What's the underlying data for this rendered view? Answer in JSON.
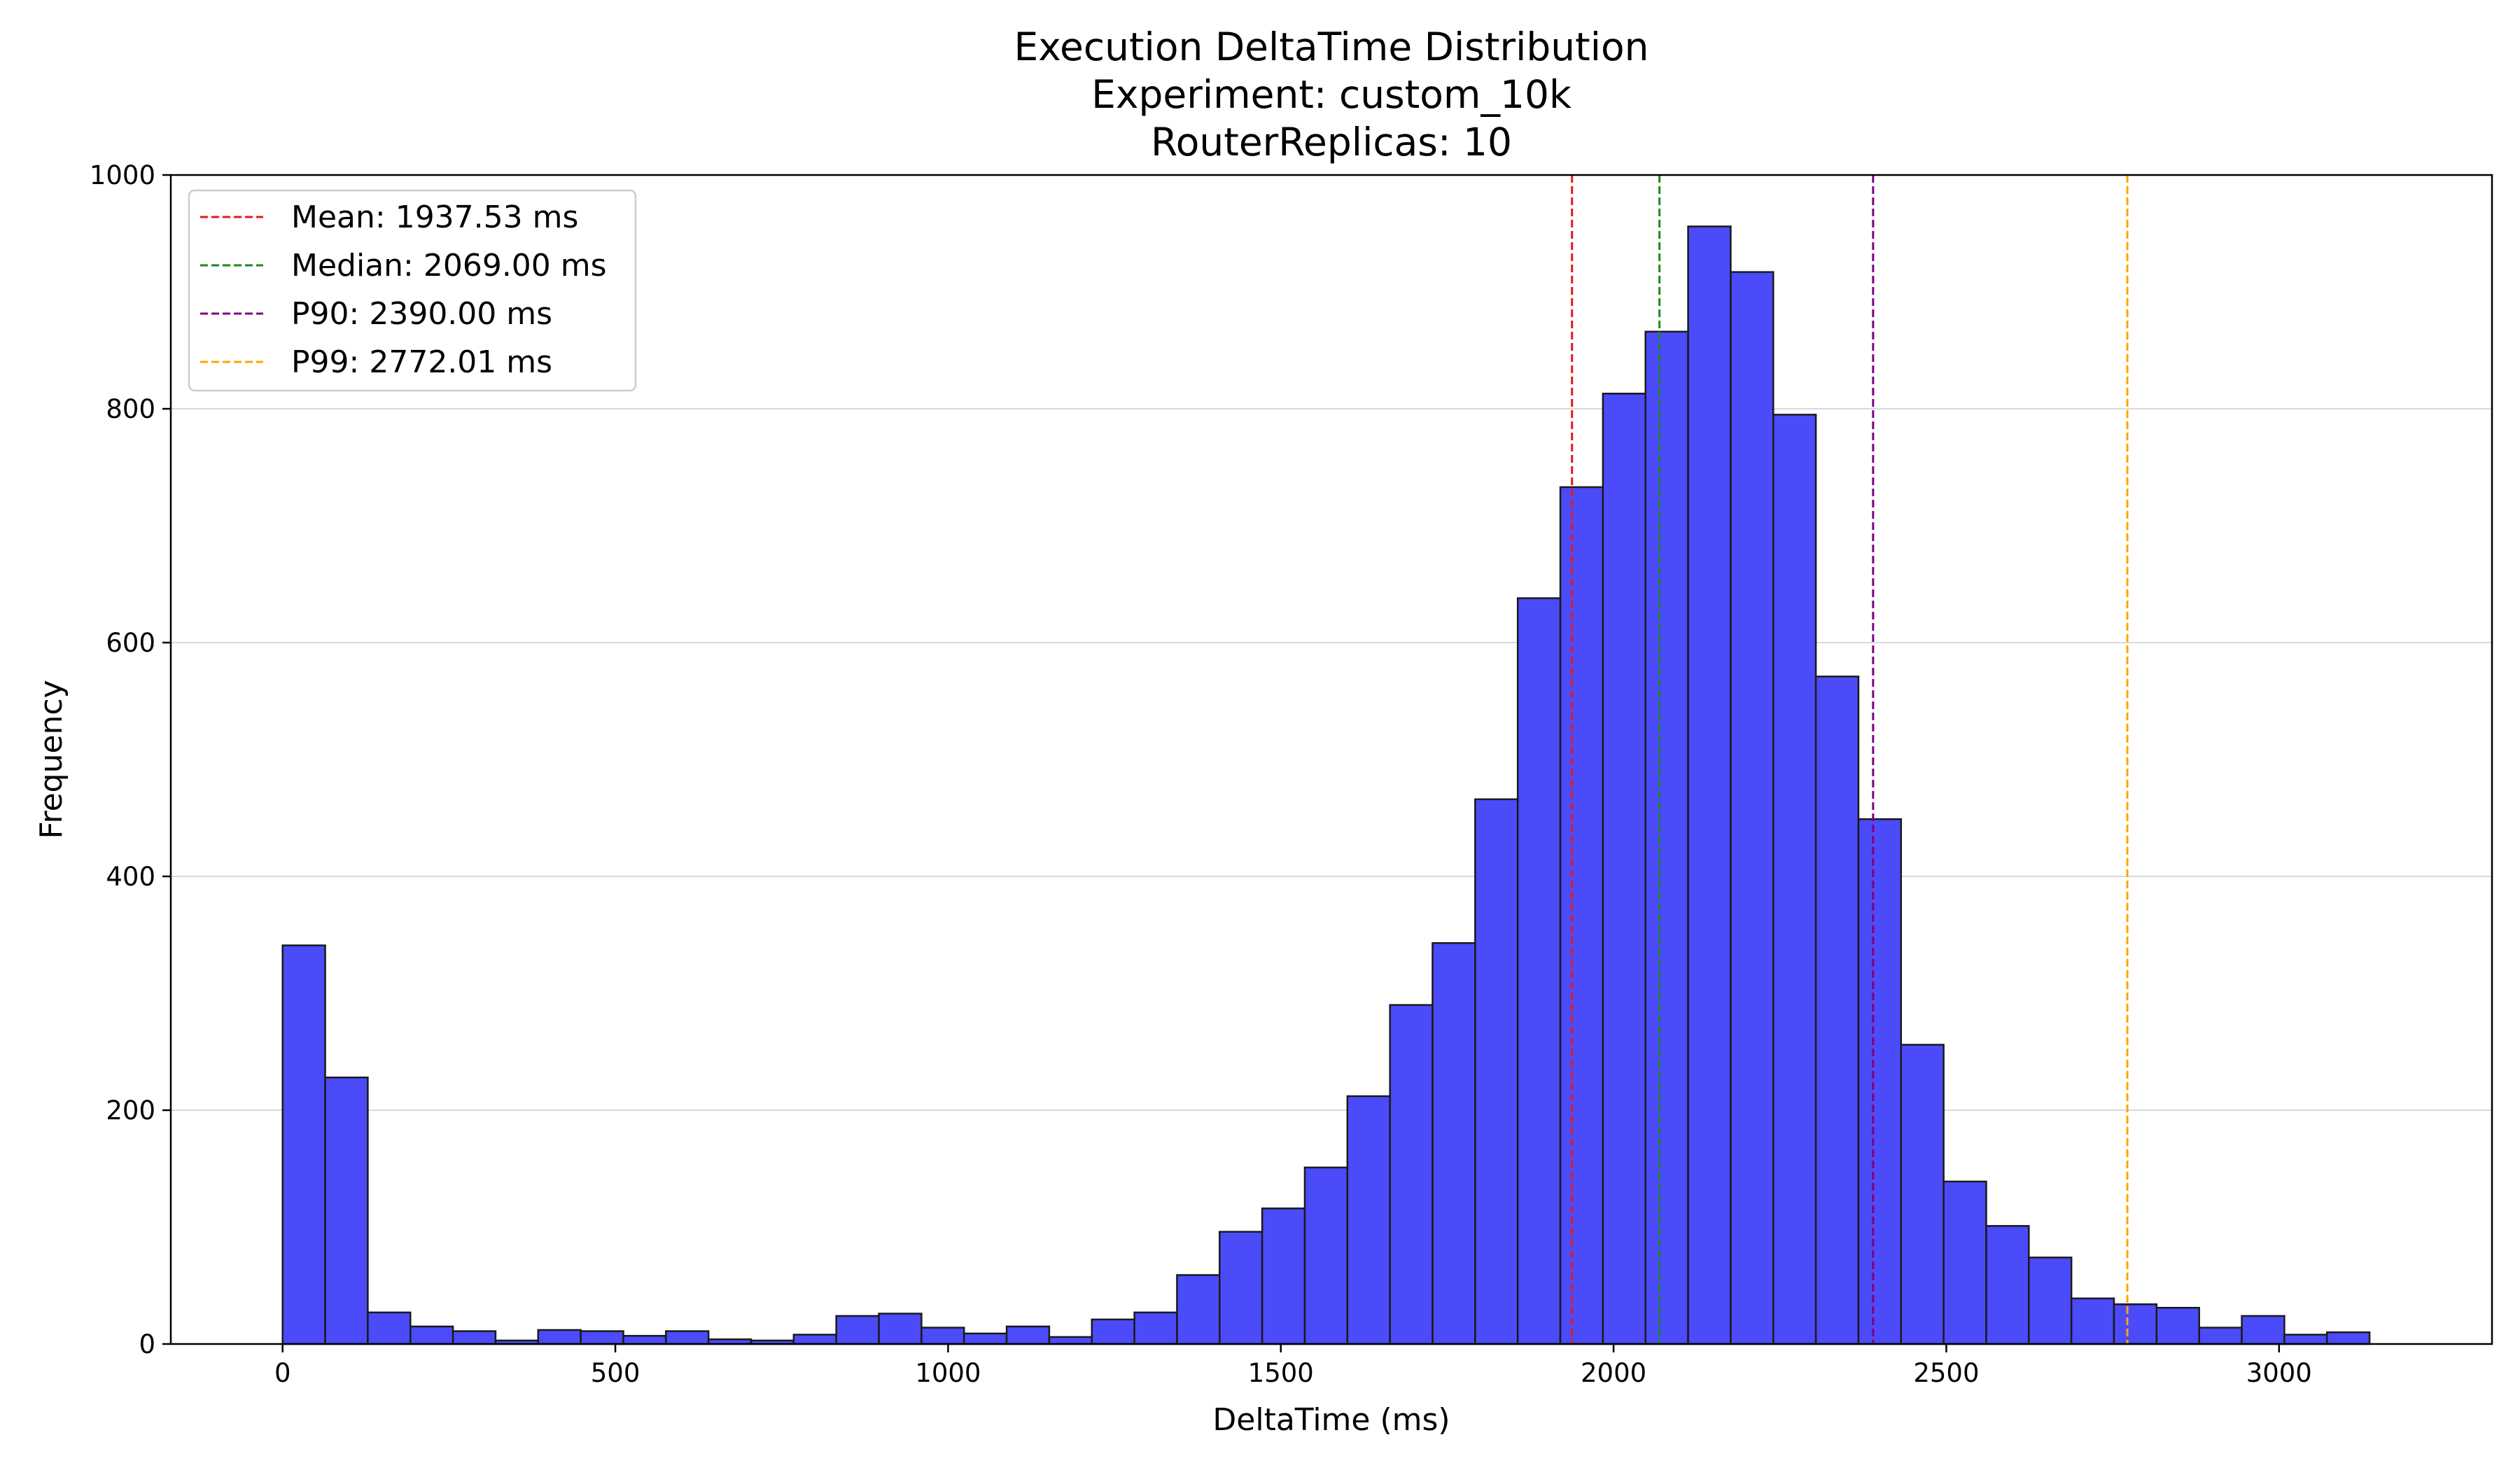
{
  "chart_data": {
    "type": "bar",
    "title_lines": [
      "Execution DeltaTime Distribution",
      "Experiment: custom_10k",
      "RouterReplicas: 10"
    ],
    "xlabel": "DeltaTime (ms)",
    "ylabel": "Frequency",
    "xlim": [
      -168,
      3320
    ],
    "ylim": [
      0,
      1000
    ],
    "xticks": [
      0,
      500,
      1000,
      1500,
      2000,
      2500,
      3000
    ],
    "yticks": [
      0,
      200,
      400,
      600,
      800,
      1000
    ],
    "grid": "y",
    "bar_color": "#4b4bfa",
    "bar_edge_color": "#1a1a1a",
    "bin_width": 64,
    "bin_starts": [
      0,
      64,
      128,
      192,
      256,
      320,
      384,
      448,
      512,
      576,
      640,
      704,
      768,
      832,
      896,
      960,
      1024,
      1088,
      1152,
      1216,
      1280,
      1344,
      1408,
      1472,
      1536,
      1600,
      1664,
      1728,
      1792,
      1856,
      1920,
      1984,
      2048,
      2112,
      2176,
      2240,
      2304,
      2368,
      2432,
      2496,
      2560,
      2624,
      2688,
      2752,
      2816,
      2880,
      2944,
      3008,
      3072
    ],
    "values": [
      341,
      228,
      27,
      15,
      11,
      3,
      12,
      11,
      7,
      11,
      4,
      3,
      8,
      24,
      26,
      14,
      9,
      15,
      6,
      21,
      27,
      59,
      96,
      116,
      151,
      212,
      290,
      343,
      466,
      638,
      733,
      813,
      866,
      956,
      917,
      795,
      571,
      449,
      256,
      139,
      101,
      74,
      39,
      34,
      31,
      14,
      24,
      8,
      10
    ],
    "reference_lines": [
      {
        "label": "Mean: 1937.53 ms",
        "x": 1937.53,
        "color": "#e31a1c"
      },
      {
        "label": "Median: 2069.00 ms",
        "x": 2069.0,
        "color": "#1a8a1a"
      },
      {
        "label": "P90: 2390.00 ms",
        "x": 2390.0,
        "color": "#800080"
      },
      {
        "label": "P99: 2772.01 ms",
        "x": 2772.01,
        "color": "#ffa500"
      }
    ],
    "legend_position": "top-left"
  }
}
